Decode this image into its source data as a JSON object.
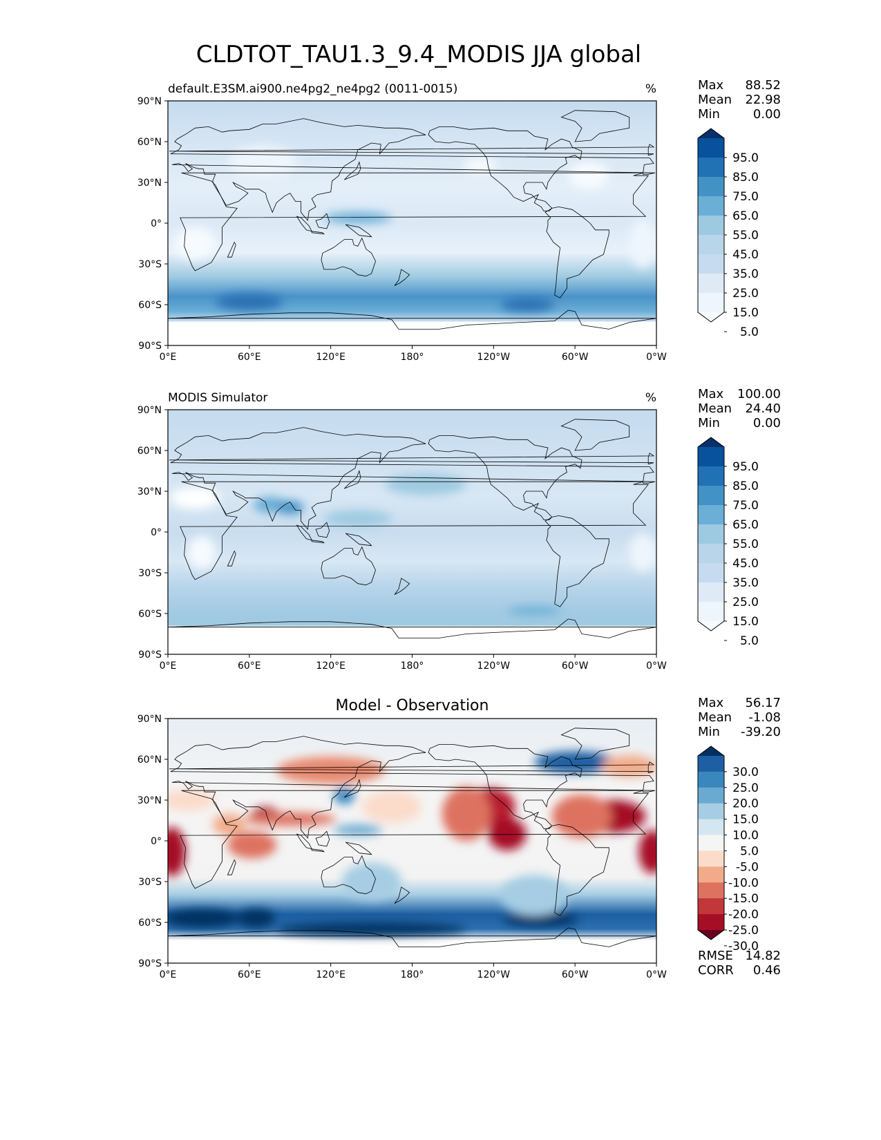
{
  "title": "CLDTOT_TAU1.3_9.4_MODIS JJA global",
  "lat_ticks": [
    "90°N",
    "60°N",
    "30°N",
    "0°",
    "30°S",
    "60°S",
    "90°S"
  ],
  "lon_ticks": [
    "0°E",
    "60°E",
    "120°E",
    "180°",
    "120°W",
    "60°W",
    "0°W"
  ],
  "panels": [
    {
      "title_left": "default.E3SM.ai900.ne4pg2_ne4pg2 (0011-0015)",
      "title_center": "",
      "units": "%",
      "stats": [
        {
          "label": "Max",
          "value": "88.52"
        },
        {
          "label": "Mean",
          "value": "22.98"
        },
        {
          "label": "Min",
          "value": "0.00"
        }
      ],
      "colorbar": {
        "labels": [
          "95.0",
          "85.0",
          "75.0",
          "65.0",
          "55.0",
          "45.0",
          "35.0",
          "25.0",
          "15.0",
          "5.0"
        ],
        "colors": [
          "#08306b",
          "#08519c",
          "#2171b5",
          "#4292c6",
          "#6baed6",
          "#9ecae1",
          "#b8d5ea",
          "#c6dbef",
          "#deebf7",
          "#eef5fc",
          "#f7fbff"
        ]
      },
      "extra_stats": []
    },
    {
      "title_left": "MODIS Simulator",
      "title_center": "",
      "units": "%",
      "stats": [
        {
          "label": "Max",
          "value": "100.00"
        },
        {
          "label": "Mean",
          "value": "24.40"
        },
        {
          "label": "Min",
          "value": "0.00"
        }
      ],
      "colorbar": {
        "labels": [
          "95.0",
          "85.0",
          "75.0",
          "65.0",
          "55.0",
          "45.0",
          "35.0",
          "25.0",
          "15.0",
          "5.0"
        ],
        "colors": [
          "#08306b",
          "#08519c",
          "#2171b5",
          "#4292c6",
          "#6baed6",
          "#9ecae1",
          "#b8d5ea",
          "#c6dbef",
          "#deebf7",
          "#eef5fc",
          "#f7fbff"
        ]
      },
      "extra_stats": []
    },
    {
      "title_left": "",
      "title_center": "Model - Observation",
      "units": "",
      "stats": [
        {
          "label": "Max",
          "value": "56.17"
        },
        {
          "label": "Mean",
          "value": "-1.08"
        },
        {
          "label": "Min",
          "value": "-39.20"
        }
      ],
      "colorbar": {
        "labels": [
          "30.0",
          "25.0",
          "20.0",
          "15.0",
          "10.0",
          "5.0",
          "-5.0",
          "-10.0",
          "-15.0",
          "-20.0",
          "-25.0",
          "-30.0"
        ],
        "colors": [
          "#053061",
          "#1d5fa2",
          "#3a87bd",
          "#6aaad1",
          "#a6cde3",
          "#d4e6f1",
          "#f5f5f5",
          "#fbdccb",
          "#f2ab8a",
          "#de7260",
          "#c2373a",
          "#a50f25",
          "#67001f"
        ]
      },
      "extra_stats": [
        {
          "label": "RMSE",
          "value": "14.82"
        },
        {
          "label": "CORR",
          "value": "0.46"
        }
      ]
    }
  ]
}
